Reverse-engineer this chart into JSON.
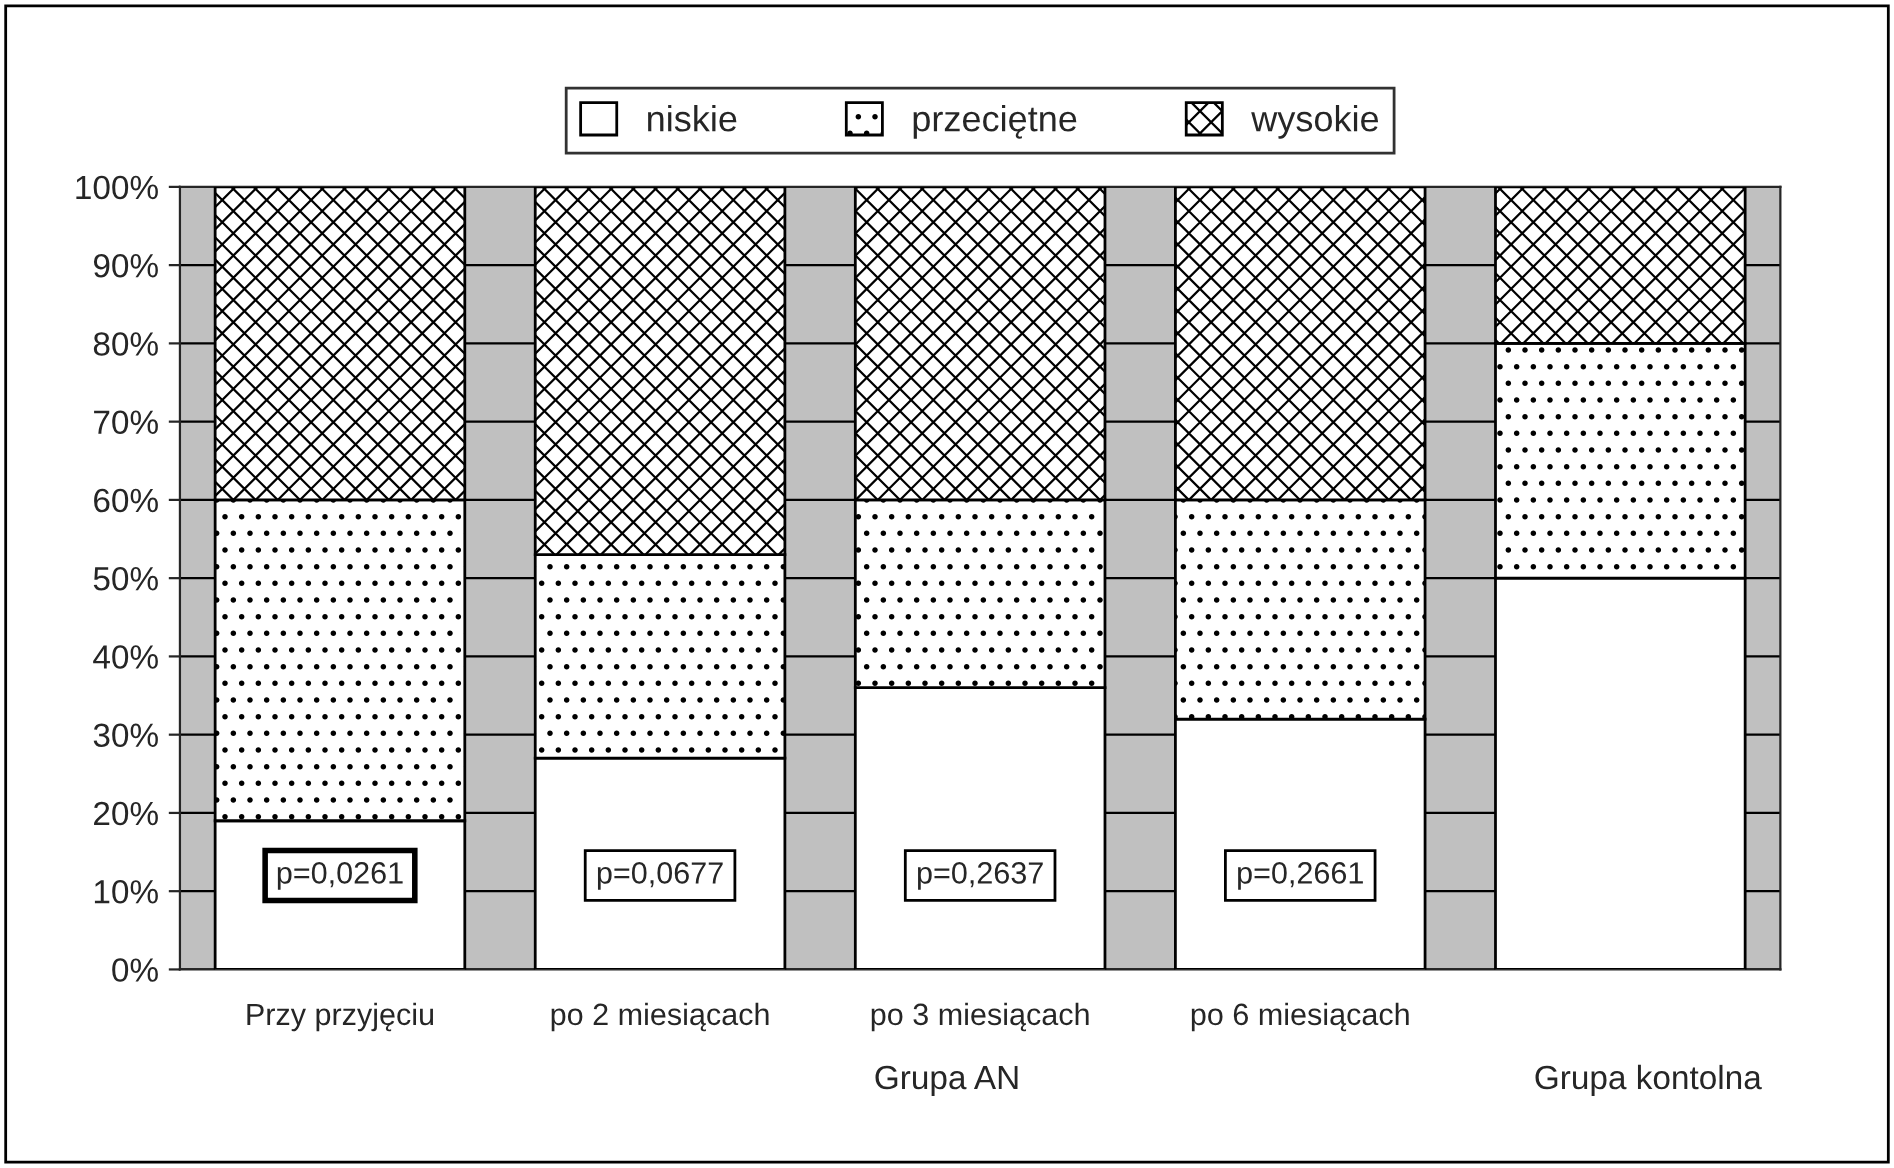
{
  "chart_data": {
    "type": "bar",
    "stacked": true,
    "categories": [
      "Przy przyjęciu",
      "po 2 miesiącach",
      "po 3 miesiącach",
      "po 6 miesiącach",
      null
    ],
    "series": [
      {
        "name": "niskie",
        "color": "#ffffff",
        "values": [
          19,
          27,
          36,
          32,
          50
        ]
      },
      {
        "name": "przeciętne",
        "color": "#000000",
        "values": [
          41,
          26,
          24,
          28,
          30
        ]
      },
      {
        "name": "wysokie",
        "color": "#000000",
        "values": [
          40,
          47,
          40,
          40,
          20
        ]
      }
    ],
    "ylim": [
      0,
      100
    ],
    "yticks": [
      {
        "value": 0,
        "label": "0%"
      },
      {
        "value": 10,
        "label": "10%"
      },
      {
        "value": 20,
        "label": "20%"
      },
      {
        "value": 30,
        "label": "30%"
      },
      {
        "value": 40,
        "label": "40%"
      },
      {
        "value": 50,
        "label": "50%"
      },
      {
        "value": 60,
        "label": "60%"
      },
      {
        "value": 70,
        "label": "70%"
      },
      {
        "value": 80,
        "label": "80%"
      },
      {
        "value": 90,
        "label": "90%"
      },
      {
        "value": 100,
        "label": "100%"
      }
    ],
    "grid": "y",
    "legend": "top",
    "annotations": [
      "p=0,0261",
      "p=0,0677",
      "p=0,2637",
      "p=0,2661",
      "Grupa AN",
      "Grupa kontolna"
    ]
  }
}
